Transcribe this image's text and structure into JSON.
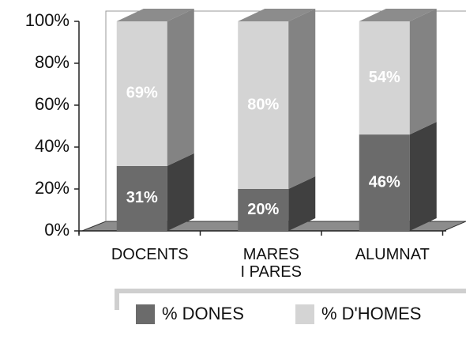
{
  "chart_data": {
    "type": "bar3d_stacked",
    "categories": [
      "DOCENTS",
      "MARES I PARES",
      "ALUMNAT"
    ],
    "series": [
      {
        "name": "% DONES",
        "color": "#6b6b6b",
        "values": [
          31,
          20,
          46
        ],
        "value_labels": [
          "31%",
          "20%",
          "46%"
        ]
      },
      {
        "name": "% D'HOMES",
        "color": "#d4d4d4",
        "values": [
          69,
          80,
          54
        ],
        "value_labels": [
          "69%",
          "80%",
          "54%"
        ]
      }
    ],
    "ylim": [
      0,
      100
    ],
    "yticks": [
      {
        "value": 0,
        "label": "0%"
      },
      {
        "value": 20,
        "label": "20%"
      },
      {
        "value": 40,
        "label": "40%"
      },
      {
        "value": 60,
        "label": "60%"
      },
      {
        "value": 80,
        "label": "80%"
      },
      {
        "value": 100,
        "label": "100%"
      }
    ],
    "legend": "bottom"
  }
}
